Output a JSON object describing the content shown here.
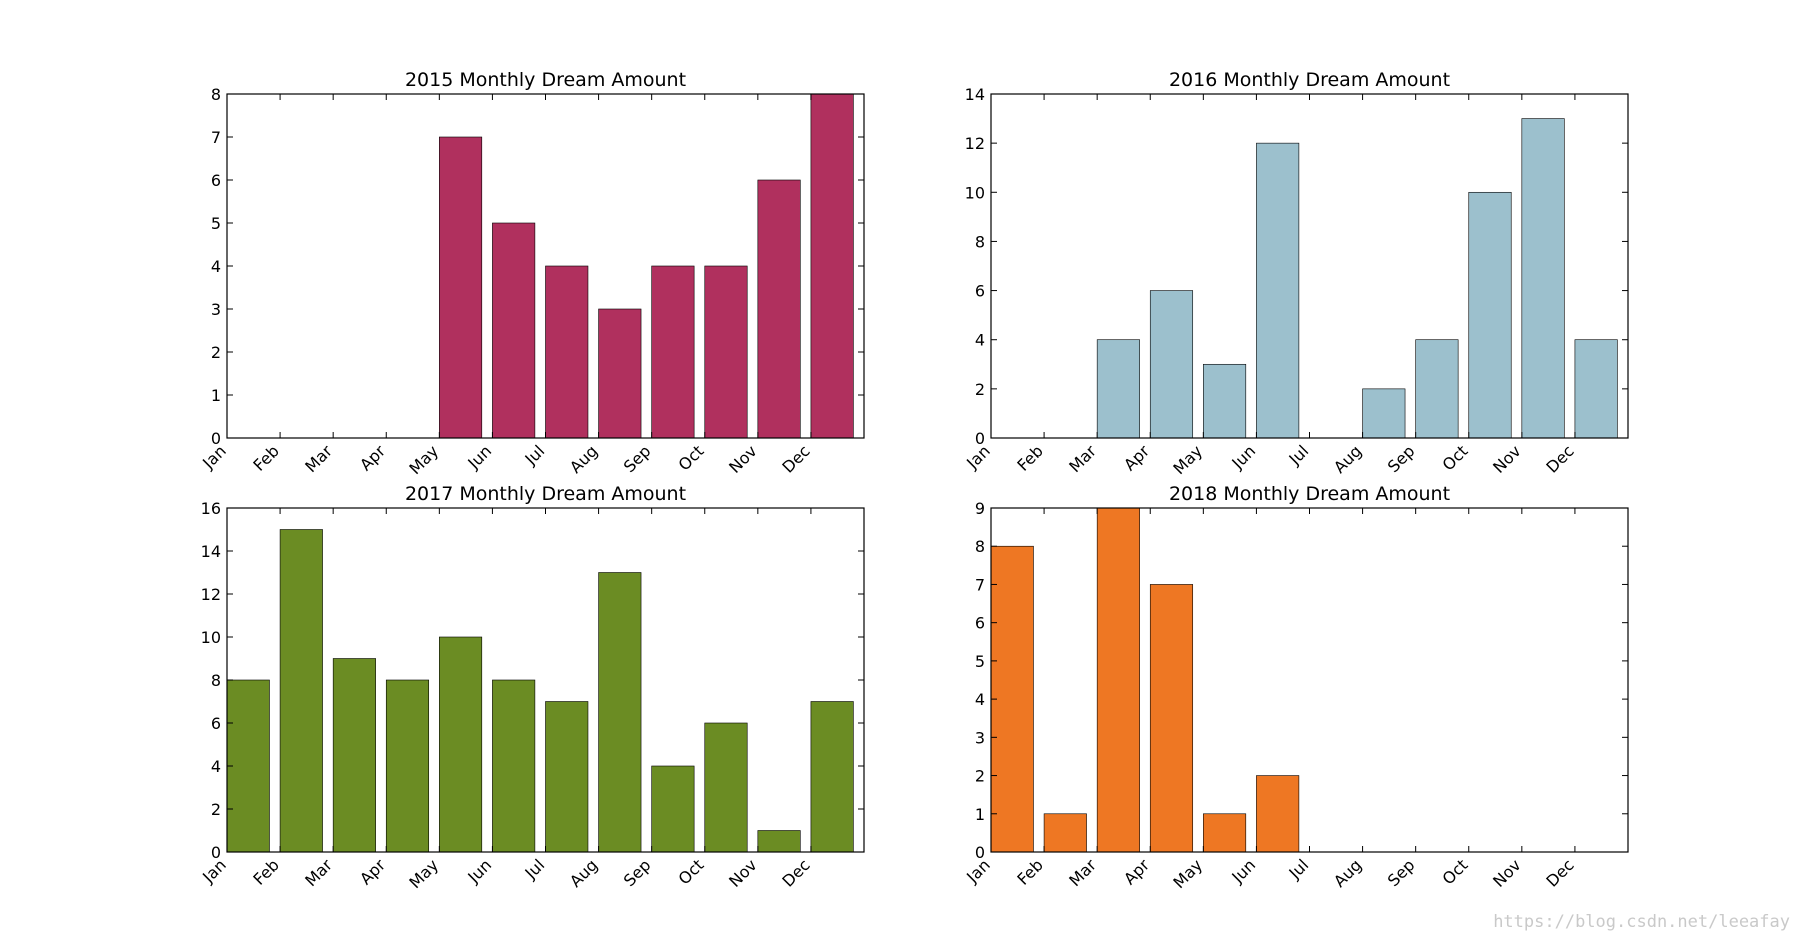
{
  "chart_data": [
    {
      "type": "bar",
      "title": "2015 Monthly Dream Amount",
      "categories": [
        "Jan",
        "Feb",
        "Mar",
        "Apr",
        "May",
        "Jun",
        "Jul",
        "Aug",
        "Sep",
        "Oct",
        "Nov",
        "Dec"
      ],
      "values": [
        0,
        0,
        0,
        0,
        7,
        5,
        4,
        3,
        4,
        4,
        6,
        8
      ],
      "ylim": [
        0,
        8
      ],
      "yticks": [
        "0",
        "1",
        "2",
        "3",
        "4",
        "5",
        "6",
        "7",
        "8"
      ],
      "color": "#b0305e",
      "grid": false
    },
    {
      "type": "bar",
      "title": "2016 Monthly Dream Amount",
      "categories": [
        "Jan",
        "Feb",
        "Mar",
        "Apr",
        "May",
        "Jun",
        "Jul",
        "Aug",
        "Sep",
        "Oct",
        "Nov",
        "Dec"
      ],
      "values": [
        0,
        0,
        4,
        6,
        3,
        12,
        0,
        2,
        4,
        10,
        13,
        4
      ],
      "ylim": [
        0,
        14
      ],
      "yticks": [
        "0",
        "2",
        "4",
        "6",
        "8",
        "10",
        "12",
        "14"
      ],
      "color": "#9cc0cd",
      "grid": false
    },
    {
      "type": "bar",
      "title": "2017 Monthly Dream Amount",
      "categories": [
        "Jan",
        "Feb",
        "Mar",
        "Apr",
        "May",
        "Jun",
        "Jul",
        "Aug",
        "Sep",
        "Oct",
        "Nov",
        "Dec"
      ],
      "values": [
        8,
        15,
        9,
        8,
        10,
        8,
        7,
        13,
        4,
        6,
        1,
        7
      ],
      "ylim": [
        0,
        16
      ],
      "yticks": [
        "0",
        "2",
        "4",
        "6",
        "8",
        "10",
        "12",
        "14",
        "16"
      ],
      "color": "#6b8c23",
      "grid": false
    },
    {
      "type": "bar",
      "title": "2018 Monthly Dream Amount",
      "categories": [
        "Jan",
        "Feb",
        "Mar",
        "Apr",
        "May",
        "Jun",
        "Jul",
        "Aug",
        "Sep",
        "Oct",
        "Nov",
        "Dec"
      ],
      "values": [
        8,
        1,
        9,
        7,
        1,
        2,
        0,
        0,
        0,
        0,
        0,
        0
      ],
      "ylim": [
        0,
        9
      ],
      "yticks": [
        "0",
        "1",
        "2",
        "3",
        "4",
        "5",
        "6",
        "7",
        "8",
        "9"
      ],
      "color": "#ee7723",
      "grid": false
    }
  ],
  "watermark": "https://blog.csdn.net/leeafay"
}
